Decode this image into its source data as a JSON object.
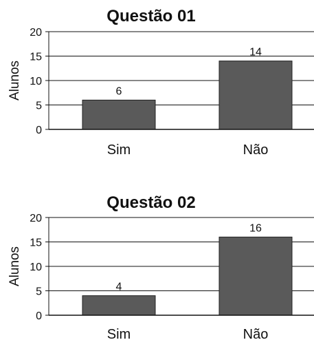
{
  "chart_data": [
    {
      "type": "bar",
      "title": "Questão 01",
      "ylabel": "Alunos",
      "xlabel": "",
      "categories": [
        "Sim",
        "Não"
      ],
      "values": [
        6,
        14
      ],
      "ylim": [
        0,
        20
      ],
      "yticks": [
        0,
        5,
        10,
        15,
        20
      ],
      "grid": true,
      "bar_color": "#5a5a5a"
    },
    {
      "type": "bar",
      "title": "Questão 02",
      "ylabel": "Alunos",
      "xlabel": "",
      "categories": [
        "Sim",
        "Não"
      ],
      "values": [
        4,
        16
      ],
      "ylim": [
        0,
        20
      ],
      "yticks": [
        0,
        5,
        10,
        15,
        20
      ],
      "grid": true,
      "bar_color": "#5a5a5a"
    }
  ]
}
